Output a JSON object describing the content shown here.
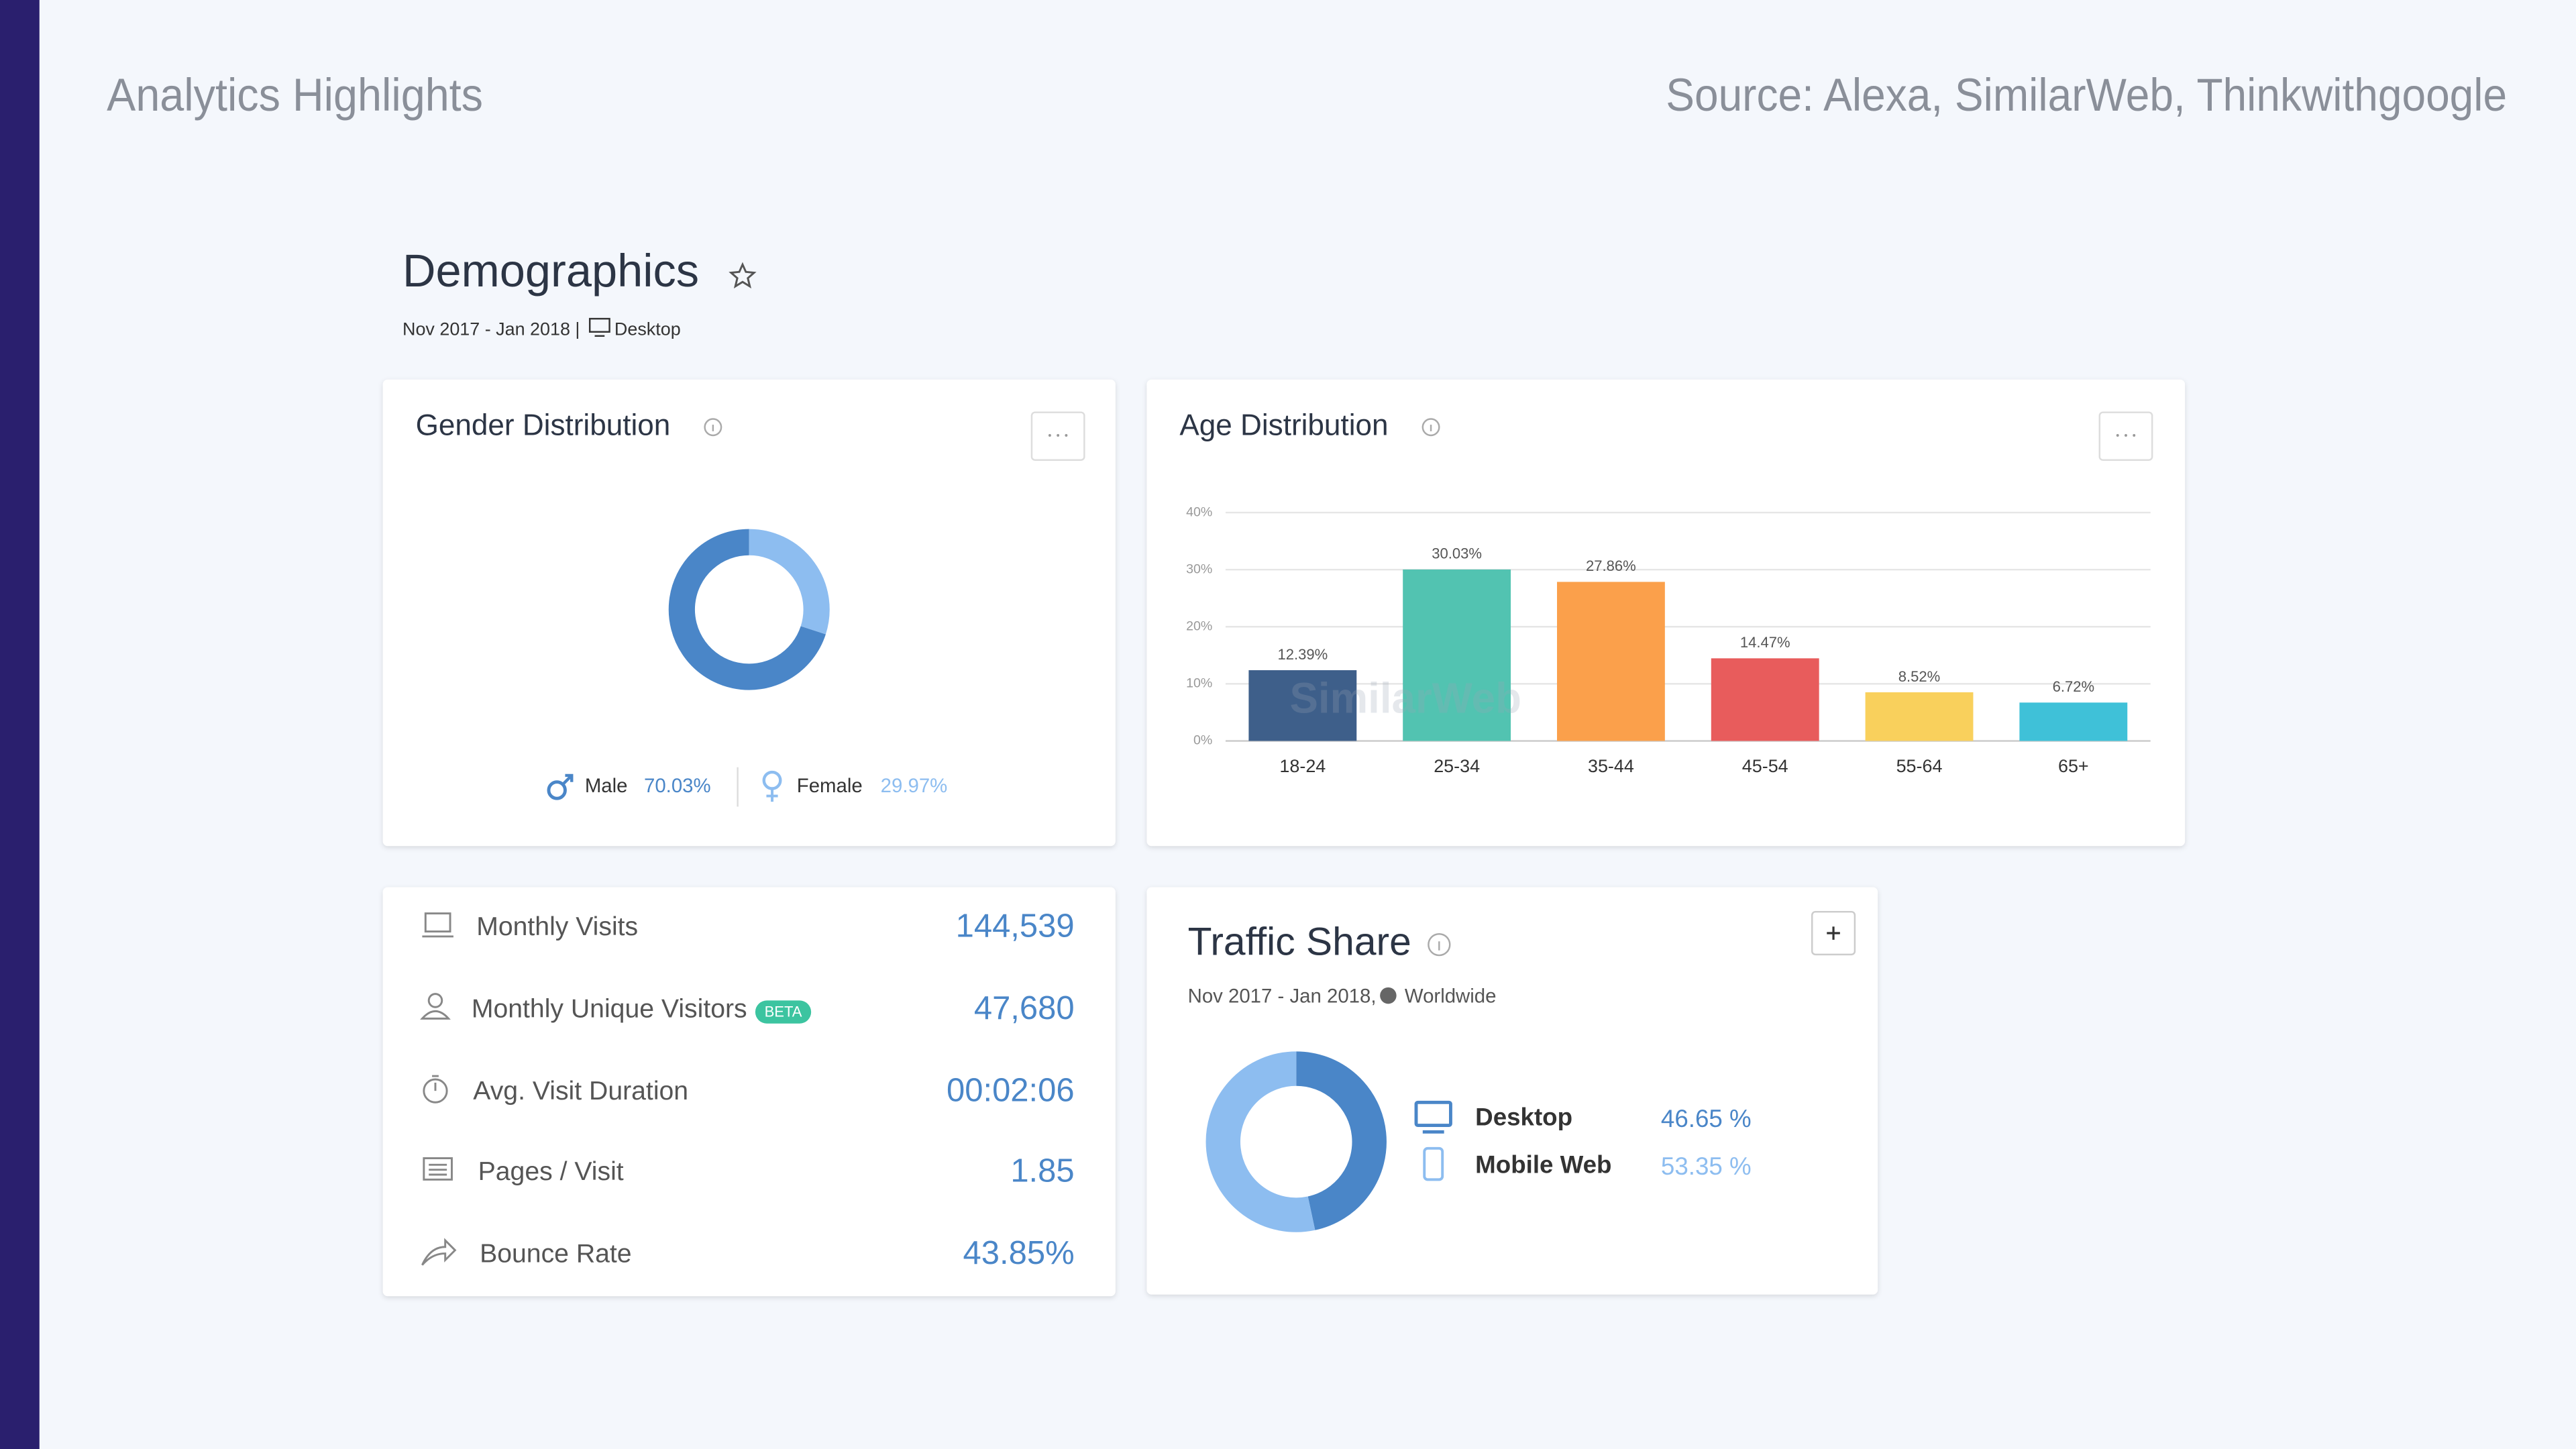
{
  "header": {
    "title": "Analytics Highlights",
    "source": "Source: Alexa, SimilarWeb, Thinkwithgoogle"
  },
  "demographics": {
    "title": "Demographics",
    "date_range": "Nov 2017 - Jan 2018 |",
    "device": "Desktop"
  },
  "chart_data": [
    {
      "type": "pie",
      "title": "Gender Distribution",
      "categories": [
        "Male",
        "Female"
      ],
      "values": [
        70.03,
        29.97
      ],
      "value_labels": [
        "70.03%",
        "29.97%"
      ],
      "colors": [
        "#4a86c8",
        "#8dbdf0"
      ]
    },
    {
      "type": "bar",
      "title": "Age Distribution",
      "categories": [
        "18-24",
        "25-34",
        "35-44",
        "45-54",
        "55-64",
        "65+"
      ],
      "values": [
        12.39,
        30.03,
        27.86,
        14.47,
        8.52,
        6.72
      ],
      "value_labels": [
        "12.39%",
        "30.03%",
        "27.86%",
        "14.47%",
        "8.52%",
        "6.72%"
      ],
      "colors": [
        "#3e5f8a",
        "#52c3b1",
        "#fba04b",
        "#e85c5c",
        "#f9d05c",
        "#3fc1d8"
      ],
      "ylim": [
        0,
        40
      ],
      "yticks": [
        {
          "value": 0,
          "label": "0%"
        },
        {
          "value": 10,
          "label": "10%"
        },
        {
          "value": 20,
          "label": "20%"
        },
        {
          "value": 30,
          "label": "30%"
        },
        {
          "value": 40,
          "label": "40%"
        }
      ],
      "grid": true,
      "watermark": "SimilarWeb"
    },
    {
      "type": "pie",
      "title": "Traffic Share",
      "subtitle": "Nov 2017 - Jan 2018,",
      "region": "Worldwide",
      "categories": [
        "Desktop",
        "Mobile Web"
      ],
      "values": [
        46.65,
        53.35
      ],
      "value_labels": [
        "46.65 %",
        "53.35 %"
      ],
      "colors": [
        "#4a86c8",
        "#8dbdf0"
      ]
    }
  ],
  "metrics": [
    {
      "label": "Monthly Visits",
      "value": "144,539"
    },
    {
      "label": "Monthly Unique Visitors",
      "value": "47,680",
      "badge": "BETA"
    },
    {
      "label": "Avg. Visit Duration",
      "value": "00:02:06"
    },
    {
      "label": "Pages / Visit",
      "value": "1.85"
    },
    {
      "label": "Bounce Rate",
      "value": "43.85%"
    }
  ]
}
